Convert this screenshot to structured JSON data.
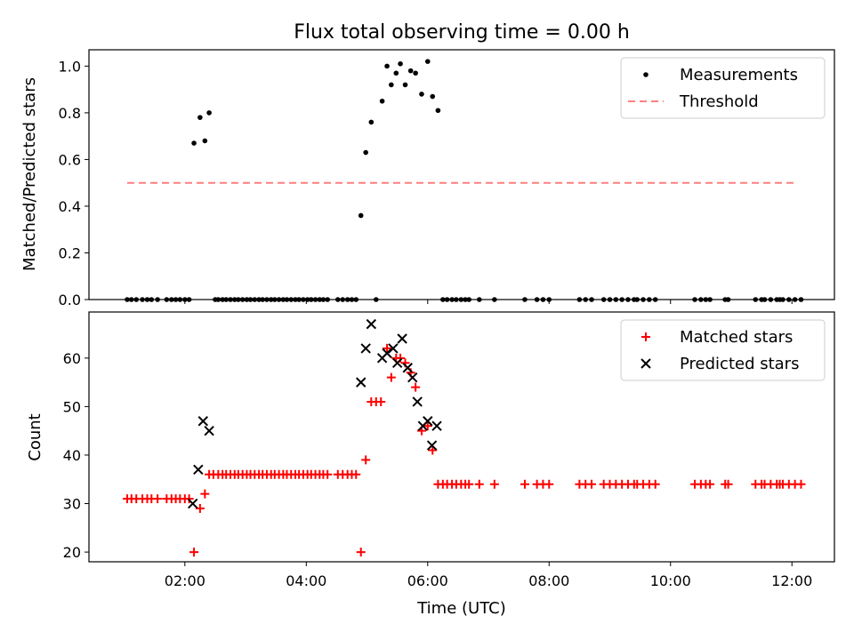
{
  "chart_data": [
    {
      "type": "scatter",
      "title": "Flux total observing time = 0.00 h",
      "xlabel": "",
      "ylabel": "Matched/Predicted stars",
      "xlim": [
        0.42,
        12.7
      ],
      "ylim": [
        0.0,
        1.07
      ],
      "yticks": [
        0.0,
        0.2,
        0.4,
        0.6,
        0.8,
        1.0
      ],
      "ytick_labels": [
        "0.0",
        "0.2",
        "0.4",
        "0.6",
        "0.8",
        "1.0"
      ],
      "xticks": [
        2,
        4,
        6,
        8,
        10,
        12
      ],
      "legend_position": "top-right",
      "series": [
        {
          "name": "Measurements",
          "marker": "dot",
          "color": "#000000",
          "x": [
            1.05,
            1.12,
            1.2,
            1.3,
            1.38,
            1.45,
            1.55,
            1.7,
            1.78,
            1.85,
            1.92,
            2.0,
            2.07,
            2.15,
            2.25,
            2.33,
            2.4,
            2.5,
            2.55,
            2.62,
            2.68,
            2.75,
            2.82,
            2.88,
            2.95,
            3.02,
            3.08,
            3.15,
            3.22,
            3.28,
            3.35,
            3.42,
            3.48,
            3.55,
            3.62,
            3.68,
            3.75,
            3.82,
            3.88,
            3.95,
            4.02,
            4.08,
            4.15,
            4.22,
            4.28,
            4.35,
            4.52,
            4.6,
            4.68,
            4.75,
            4.82,
            4.9,
            4.98,
            5.07,
            5.15,
            5.25,
            5.33,
            5.4,
            5.48,
            5.55,
            5.63,
            5.72,
            5.8,
            5.9,
            6.0,
            6.08,
            6.17,
            6.25,
            6.32,
            6.4,
            6.47,
            6.55,
            6.62,
            6.68,
            6.85,
            7.1,
            7.6,
            7.8,
            7.9,
            8.0,
            8.5,
            8.6,
            8.7,
            8.9,
            9.0,
            9.1,
            9.2,
            9.3,
            9.4,
            9.45,
            9.55,
            9.65,
            9.75,
            10.4,
            10.5,
            10.58,
            10.65,
            10.9,
            10.95,
            11.4,
            11.5,
            11.55,
            11.65,
            11.75,
            11.8,
            11.85,
            11.95,
            12.05,
            12.15
          ],
          "y": [
            0,
            0,
            0,
            0,
            0,
            0,
            0,
            0,
            0,
            0,
            0,
            0,
            0,
            0.67,
            0.78,
            0.68,
            0.8,
            0,
            0,
            0,
            0,
            0,
            0,
            0,
            0,
            0,
            0,
            0,
            0,
            0,
            0,
            0,
            0,
            0,
            0,
            0,
            0,
            0,
            0,
            0,
            0,
            0,
            0,
            0,
            0,
            0,
            0,
            0,
            0,
            0,
            0,
            0.36,
            0.63,
            0.76,
            0,
            0.85,
            1.0,
            0.92,
            0.97,
            1.01,
            0.92,
            0.98,
            0.97,
            0.88,
            1.02,
            0.87,
            0.81,
            0,
            0,
            0,
            0,
            0,
            0,
            0,
            0,
            0,
            0,
            0,
            0,
            0,
            0,
            0,
            0,
            0,
            0,
            0,
            0,
            0,
            0,
            0,
            0,
            0,
            0,
            0,
            0,
            0,
            0,
            0,
            0,
            0,
            0,
            0,
            0,
            0,
            0,
            0,
            0,
            0,
            0
          ]
        },
        {
          "name": "Threshold",
          "marker": "dashed-line",
          "color": "#ff7f7f",
          "x": [
            1.05,
            12.1
          ],
          "y": [
            0.5,
            0.5
          ]
        }
      ]
    },
    {
      "type": "scatter",
      "title": "",
      "xlabel": "Time (UTC)",
      "ylabel": "Count",
      "xlim": [
        0.42,
        12.7
      ],
      "ylim": [
        18,
        69.5
      ],
      "yticks": [
        20,
        30,
        40,
        50,
        60
      ],
      "ytick_labels": [
        "20",
        "30",
        "40",
        "50",
        "60"
      ],
      "xticks": [
        2,
        4,
        6,
        8,
        10,
        12
      ],
      "xtick_labels": [
        "02:00",
        "04:00",
        "06:00",
        "08:00",
        "10:00",
        "12:00"
      ],
      "legend_position": "top-right",
      "series": [
        {
          "name": "Matched stars",
          "marker": "plus",
          "color": "#ff0000",
          "x": [
            1.05,
            1.12,
            1.2,
            1.3,
            1.38,
            1.45,
            1.55,
            1.7,
            1.78,
            1.85,
            1.92,
            2.0,
            2.07,
            2.15,
            2.25,
            2.33,
            2.4,
            2.47,
            2.55,
            2.62,
            2.68,
            2.75,
            2.82,
            2.88,
            2.95,
            3.02,
            3.08,
            3.15,
            3.22,
            3.28,
            3.35,
            3.42,
            3.48,
            3.55,
            3.62,
            3.68,
            3.75,
            3.82,
            3.88,
            3.95,
            4.02,
            4.08,
            4.15,
            4.22,
            4.28,
            4.35,
            4.52,
            4.6,
            4.68,
            4.75,
            4.82,
            4.9,
            4.98,
            5.07,
            5.15,
            5.23,
            5.33,
            5.4,
            5.48,
            5.55,
            5.63,
            5.72,
            5.8,
            5.9,
            6.0,
            6.08,
            6.17,
            6.25,
            6.32,
            6.4,
            6.47,
            6.55,
            6.62,
            6.68,
            6.85,
            7.1,
            7.6,
            7.8,
            7.9,
            8.0,
            8.5,
            8.6,
            8.7,
            8.9,
            9.0,
            9.1,
            9.2,
            9.3,
            9.4,
            9.45,
            9.55,
            9.65,
            9.75,
            10.4,
            10.5,
            10.58,
            10.65,
            10.9,
            10.95,
            11.4,
            11.5,
            11.55,
            11.65,
            11.75,
            11.8,
            11.85,
            11.95,
            12.05,
            12.15
          ],
          "y": [
            31,
            31,
            31,
            31,
            31,
            31,
            31,
            31,
            31,
            31,
            31,
            31,
            31,
            20,
            29,
            32,
            36,
            36,
            36,
            36,
            36,
            36,
            36,
            36,
            36,
            36,
            36,
            36,
            36,
            36,
            36,
            36,
            36,
            36,
            36,
            36,
            36,
            36,
            36,
            36,
            36,
            36,
            36,
            36,
            36,
            36,
            36,
            36,
            36,
            36,
            36,
            20,
            39,
            51,
            51,
            51,
            62,
            56,
            60,
            60,
            59,
            57,
            54,
            45,
            46,
            41,
            34,
            34,
            34,
            34,
            34,
            34,
            34,
            34,
            34,
            34,
            34,
            34,
            34,
            34,
            34,
            34,
            34,
            34,
            34,
            34,
            34,
            34,
            34,
            34,
            34,
            34,
            34,
            34,
            34,
            34,
            34,
            34,
            34,
            34,
            34,
            34,
            34,
            34,
            34,
            34,
            34,
            34,
            34
          ]
        },
        {
          "name": "Predicted stars",
          "marker": "x",
          "color": "#000000",
          "x": [
            2.13,
            2.22,
            2.3,
            2.4,
            4.9,
            4.98,
            5.07,
            5.25,
            5.33,
            5.43,
            5.5,
            5.58,
            5.67,
            5.75,
            5.83,
            5.92,
            6.0,
            6.07,
            6.15
          ],
          "y": [
            30,
            37,
            47,
            45,
            55,
            62,
            67,
            60,
            61,
            62,
            59,
            64,
            58,
            56,
            51,
            46,
            47,
            42,
            46
          ]
        }
      ]
    }
  ]
}
